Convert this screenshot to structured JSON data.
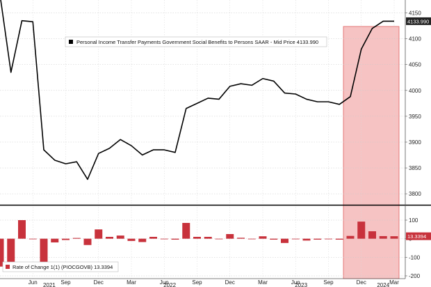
{
  "chart_data": [
    {
      "type": "line",
      "legend": "Personal Income Transfer Payments Government Social Benefits to Persons SAAR - Mid Price 4133.990",
      "last_value_label": "4133.990",
      "ylim": [
        3780,
        4175
      ],
      "yticks": [
        3800,
        3850,
        3900,
        3950,
        4000,
        4050,
        4100,
        4150
      ],
      "colors": {
        "line": "#000000",
        "highlight": "#f4b4b4",
        "highlight_border": "#e06060",
        "tag_bg": "#222222"
      },
      "highlight_range": [
        "2023-11",
        "2024-03"
      ],
      "series": [
        {
          "x": [
            "2021-03",
            "2021-04",
            "2021-05",
            "2021-06",
            "2021-07",
            "2021-08",
            "2021-09",
            "2021-10",
            "2021-11",
            "2021-12",
            "2022-01",
            "2022-02",
            "2022-03",
            "2022-04",
            "2022-05",
            "2022-06",
            "2022-07",
            "2022-08",
            "2022-09",
            "2022-10",
            "2022-11",
            "2022-12",
            "2023-01",
            "2023-02",
            "2023-03",
            "2023-04",
            "2023-05",
            "2023-06",
            "2023-07",
            "2023-08",
            "2023-09",
            "2023-10",
            "2023-11",
            "2023-12",
            "2024-01",
            "2024-02",
            "2024-03"
          ],
          "values": [
            4185,
            4035,
            4135,
            4133,
            3885,
            3865,
            3858,
            3862,
            3828,
            3878,
            3888,
            3905,
            3893,
            3875,
            3885,
            3885,
            3880,
            3965,
            3975,
            3985,
            3983,
            4008,
            4013,
            4010,
            4023,
            4018,
            3995,
            3993,
            3983,
            3978,
            3978,
            3973,
            3988,
            4080,
            4120,
            4133.99,
            4133.99
          ]
        }
      ]
    },
    {
      "type": "bar",
      "legend": "Rate of Change 1(1) (PIOCGOVB) 13.3394",
      "last_value_label": "13.3394",
      "ylim": [
        -215,
        175
      ],
      "yticks": [
        -200,
        -100,
        0,
        100
      ],
      "colors": {
        "bar": "#c8323c",
        "tag_bg": "#c8323c"
      },
      "x": [
        "2021-03",
        "2021-04",
        "2021-05",
        "2021-06",
        "2021-07",
        "2021-08",
        "2021-09",
        "2021-10",
        "2021-11",
        "2021-12",
        "2022-01",
        "2022-02",
        "2022-03",
        "2022-04",
        "2022-05",
        "2022-06",
        "2022-07",
        "2022-08",
        "2022-09",
        "2022-10",
        "2022-11",
        "2022-12",
        "2023-01",
        "2023-02",
        "2023-03",
        "2023-04",
        "2023-05",
        "2023-06",
        "2023-07",
        "2023-08",
        "2023-09",
        "2023-10",
        "2023-11",
        "2023-12",
        "2024-01",
        "2024-02",
        "2024-03"
      ],
      "values": [
        -150,
        -138,
        100,
        -2,
        -150,
        -20,
        -7,
        4,
        -34,
        50,
        10,
        17,
        -12,
        -18,
        10,
        0,
        -5,
        85,
        10,
        10,
        -2,
        25,
        5,
        -3,
        13,
        -5,
        -23,
        -2,
        -10,
        -5,
        0,
        -5,
        15,
        92,
        40,
        14,
        13.3394
      ]
    }
  ],
  "x_axis": {
    "month_labels": [
      "Jun",
      "Sep",
      "Dec",
      "Mar",
      "Jun",
      "Sep",
      "Dec",
      "Mar",
      "Jun",
      "Sep",
      "Dec",
      "Mar"
    ],
    "year_labels": [
      "2021",
      "2022",
      "2023",
      "2024"
    ]
  }
}
